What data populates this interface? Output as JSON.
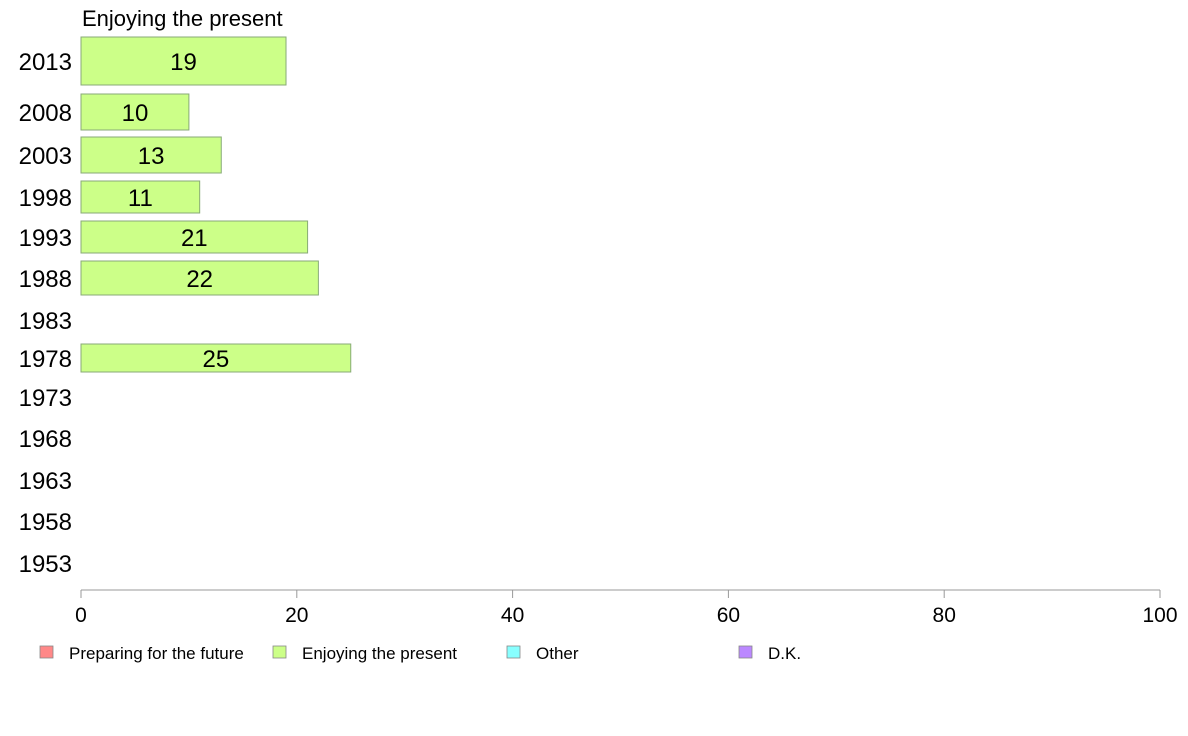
{
  "chart_data": {
    "type": "bar",
    "orientation": "horizontal",
    "title": "Enjoying the present",
    "categories": [
      "2013",
      "2008",
      "2003",
      "1998",
      "1993",
      "1988",
      "1983",
      "1978",
      "1973",
      "1968",
      "1963",
      "1958",
      "1953"
    ],
    "series": [
      {
        "name": "Enjoying the present",
        "color": "#ccff88",
        "values": [
          19,
          10,
          13,
          11,
          21,
          22,
          null,
          25,
          null,
          null,
          null,
          null,
          null
        ]
      }
    ],
    "xlim": [
      0,
      100
    ],
    "xticks": [
      0,
      20,
      40,
      60,
      80,
      100
    ],
    "grid": false,
    "legend_position": "bottom",
    "legend": [
      {
        "label": "Preparing for the future",
        "color": "#ff8888"
      },
      {
        "label": "Enjoying the present",
        "color": "#ccff88"
      },
      {
        "label": "Other",
        "color": "#88ffff"
      },
      {
        "label": "D.K.",
        "color": "#bb88ff"
      }
    ]
  }
}
